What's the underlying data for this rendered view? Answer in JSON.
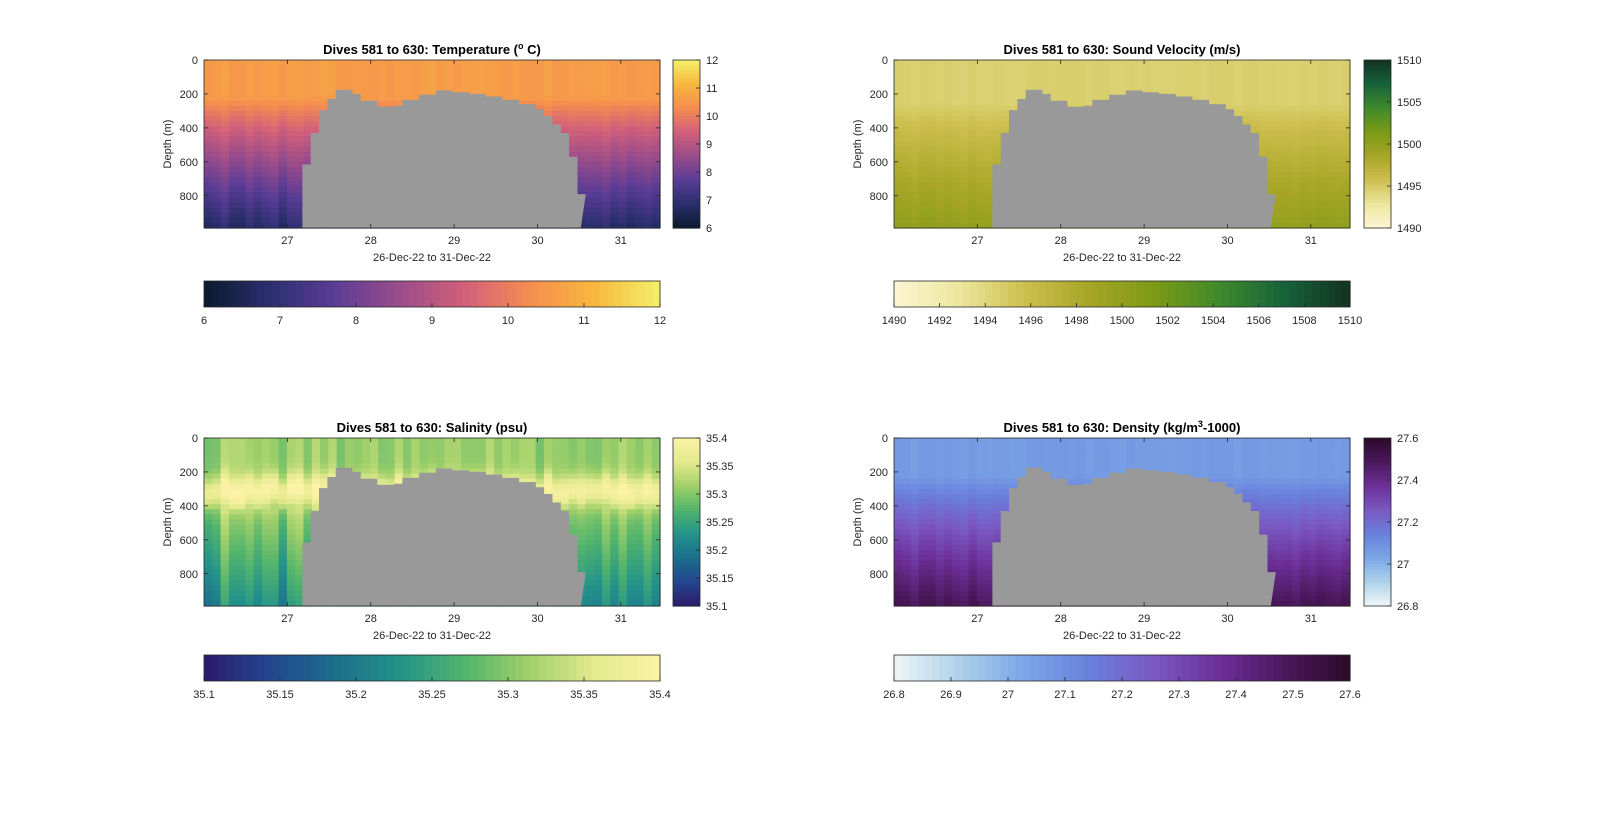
{
  "colors": {
    "seafloor": "#999999",
    "axis": "#262626",
    "background": "#ffffff"
  },
  "chart_data": [
    {
      "id": "temperature",
      "type": "heatmap",
      "title": "Dives 581 to 630: Temperature (° C)",
      "title_parts": [
        "Dives 581 to 630: Temperature (",
        "o",
        " C)"
      ],
      "xlabel": "26-Dec-22 to 31-Dec-22",
      "ylabel": "Depth (m)",
      "xlim": [
        26.0,
        31.47
      ],
      "ylim": [
        0,
        990
      ],
      "y_reversed": true,
      "xticks": [
        27,
        28,
        29,
        30,
        31
      ],
      "yticks": [
        0,
        200,
        400,
        600,
        800
      ],
      "cbar_ticks": [
        "12",
        "11",
        "10",
        "9",
        "8",
        "7",
        "6"
      ],
      "cbar_range": [
        6,
        12
      ],
      "hbar_ticks": [
        "6",
        "7",
        "8",
        "9",
        "10",
        "11",
        "12"
      ],
      "colormap": [
        "#0a1a2e",
        "#2a2f6e",
        "#5a3c95",
        "#9a4c8a",
        "#d2607a",
        "#f58d4f",
        "#f8b83f",
        "#f3f06a"
      ],
      "profile": {
        "surface": 10.6,
        "mixed_depth": 220,
        "bottom": 6.8
      },
      "grid": false
    },
    {
      "id": "sound-velocity",
      "type": "heatmap",
      "title": "Dives 581 to 630: Sound Velocity (m/s)",
      "xlabel": "26-Dec-22 to 31-Dec-22",
      "ylabel": "Depth (m)",
      "xlim": [
        26.0,
        31.47
      ],
      "ylim": [
        0,
        990
      ],
      "y_reversed": true,
      "xticks": [
        27,
        28,
        29,
        30,
        31
      ],
      "yticks": [
        0,
        200,
        400,
        600,
        800
      ],
      "cbar_ticks": [
        "1510",
        "1505",
        "1500",
        "1495",
        "1490"
      ],
      "cbar_range": [
        1490,
        1510
      ],
      "hbar_ticks": [
        "1490",
        "1492",
        "1494",
        "1496",
        "1498",
        "1500",
        "1502",
        "1504",
        "1506",
        "1508",
        "1510"
      ],
      "colormap": [
        "#fdf6d2",
        "#ece69e",
        "#cdbf4e",
        "#a7a526",
        "#7c9a16",
        "#3f8a2c",
        "#16623b",
        "#133220"
      ],
      "profile": {
        "surface": 1494.5,
        "mixed_depth": 260,
        "bottom": 1500
      },
      "grid": false
    },
    {
      "id": "salinity",
      "type": "heatmap",
      "title": "Dives 581 to 630: Salinity (psu)",
      "xlabel": "26-Dec-22 to 31-Dec-22",
      "ylabel": "Depth (m)",
      "xlim": [
        26.0,
        31.47
      ],
      "ylim": [
        0,
        990
      ],
      "y_reversed": true,
      "xticks": [
        27,
        28,
        29,
        30,
        31
      ],
      "yticks": [
        0,
        200,
        400,
        600,
        800
      ],
      "cbar_ticks": [
        "35.4",
        "35.35",
        "35.3",
        "35.25",
        "35.2",
        "35.15",
        "35.1"
      ],
      "cbar_range": [
        35.1,
        35.4
      ],
      "hbar_ticks": [
        "35.1",
        "35.15",
        "35.2",
        "35.25",
        "35.3",
        "35.35",
        "35.4"
      ],
      "colormap": [
        "#2b1a6b",
        "#24458f",
        "#1c6e8c",
        "#23938a",
        "#52b46c",
        "#a1d06a",
        "#e4ea8e",
        "#fbf2a6"
      ],
      "profile": {
        "surface": 35.31,
        "halo_depth": 310,
        "halo_value": 35.37,
        "bottom": 35.22
      },
      "grid": false
    },
    {
      "id": "density",
      "type": "heatmap",
      "title": "Dives 581 to 630: Density (kg/m³-1000)",
      "title_parts": [
        "Dives 581 to 630: Density (kg/m",
        "3",
        "-1000)"
      ],
      "xlabel": "26-Dec-22 to 31-Dec-22",
      "ylabel": "Depth (m)",
      "xlim": [
        26.0,
        31.47
      ],
      "ylim": [
        0,
        990
      ],
      "y_reversed": true,
      "xticks": [
        27,
        28,
        29,
        30,
        31
      ],
      "yticks": [
        0,
        200,
        400,
        600,
        800
      ],
      "cbar_ticks": [
        "27.6",
        "27.4",
        "27.2",
        "27",
        "26.8"
      ],
      "cbar_range": [
        26.8,
        27.6
      ],
      "hbar_ticks": [
        "26.8",
        "26.9",
        "27",
        "27.1",
        "27.2",
        "27.3",
        "27.4",
        "27.5",
        "27.6"
      ],
      "colormap": [
        "#eef6f8",
        "#aed2ea",
        "#7aa6e6",
        "#6a80dc",
        "#7a58c2",
        "#6c2f98",
        "#4b185c",
        "#2a0a2a"
      ],
      "profile": {
        "surface": 27.06,
        "mixed_depth": 230,
        "bottom": 27.5
      },
      "grid": false
    }
  ]
}
